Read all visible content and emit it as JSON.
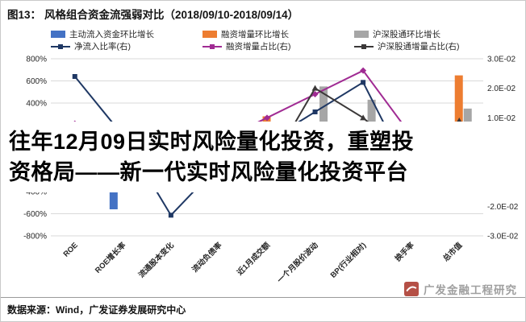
{
  "figure": {
    "label": "图13：",
    "title": "风格组合资金流强弱对比（2018/09/10-2018/09/14）"
  },
  "overlay": {
    "line1": "往年12月09日实时风险量化投资，重塑投",
    "line2": "资格局——新一代实时风险量化投资平台"
  },
  "source": "数据来源：Wind，广发证券发展研究中心",
  "watermark": "广发金融工程研究",
  "chart_data": {
    "type": "bar-line-combo",
    "title": "风格组合资金流强弱对比（2018/09/10-2018/09/14）",
    "legend_position": "top",
    "grid": true,
    "categories": [
      "ROE",
      "ROE增长率",
      "流通股本变化",
      "流动负债率",
      "近1月成交额",
      "一个月股价波动",
      "BP(行业相对)",
      "换手率",
      "总市值"
    ],
    "bar_series": [
      {
        "name": "主动流入资金环比增长",
        "color": "#4472C4",
        "axis": "left",
        "values": [
          130,
          -560,
          90,
          -120,
          160,
          110,
          -180,
          70,
          120
        ]
      },
      {
        "name": "融资增量环比增长",
        "color": "#ED7D31",
        "axis": "left",
        "values": [
          80,
          -90,
          140,
          60,
          280,
          -60,
          150,
          -230,
          650
        ]
      },
      {
        "name": "沪深股通环比增长",
        "color": "#A6A6A6",
        "axis": "left",
        "values": [
          60,
          50,
          -140,
          80,
          100,
          550,
          430,
          -80,
          350
        ]
      }
    ],
    "line_series": [
      {
        "name": "净流入比率(右)",
        "color": "#1F3864",
        "axis": "right",
        "values": [
          0.024,
          0.004,
          -0.023,
          -0.006,
          0.002,
          0.012,
          0.022,
          -0.01,
          0.006
        ]
      },
      {
        "name": "融资增量占比(右)",
        "color": "#A02B93",
        "axis": "right",
        "values": [
          0.008,
          -0.004,
          0.006,
          0.002,
          0.01,
          0.018,
          0.026,
          0.004,
          -0.012
        ]
      },
      {
        "name": "沪深股通增量占比(右)",
        "color": "#3B3838",
        "axis": "right",
        "values": [
          0.003,
          0.007,
          -0.002,
          0.005,
          -0.008,
          0.02,
          0.01,
          -0.004,
          0.009
        ]
      }
    ],
    "left_axis": {
      "min": -800,
      "max": 800,
      "unit": "%",
      "tick_values": [
        800,
        600,
        400,
        200,
        0,
        -200,
        -400,
        -600,
        -800
      ],
      "tick_labels": [
        "800%",
        "600%",
        "400%",
        "200%",
        "0%",
        "-200%",
        "-400%",
        "-600%",
        "-800%"
      ]
    },
    "right_axis": {
      "min": -0.03,
      "max": 0.03,
      "tick_values": [
        0.03,
        0.02,
        0.01,
        0,
        -0.01,
        -0.02,
        -0.03
      ],
      "tick_labels": [
        "3.0E-02",
        "2.0E-02",
        "1.0E-02",
        "0.0E+00",
        "-1.0E-02",
        "-2.0E-02",
        "-3.0E-02"
      ]
    }
  }
}
